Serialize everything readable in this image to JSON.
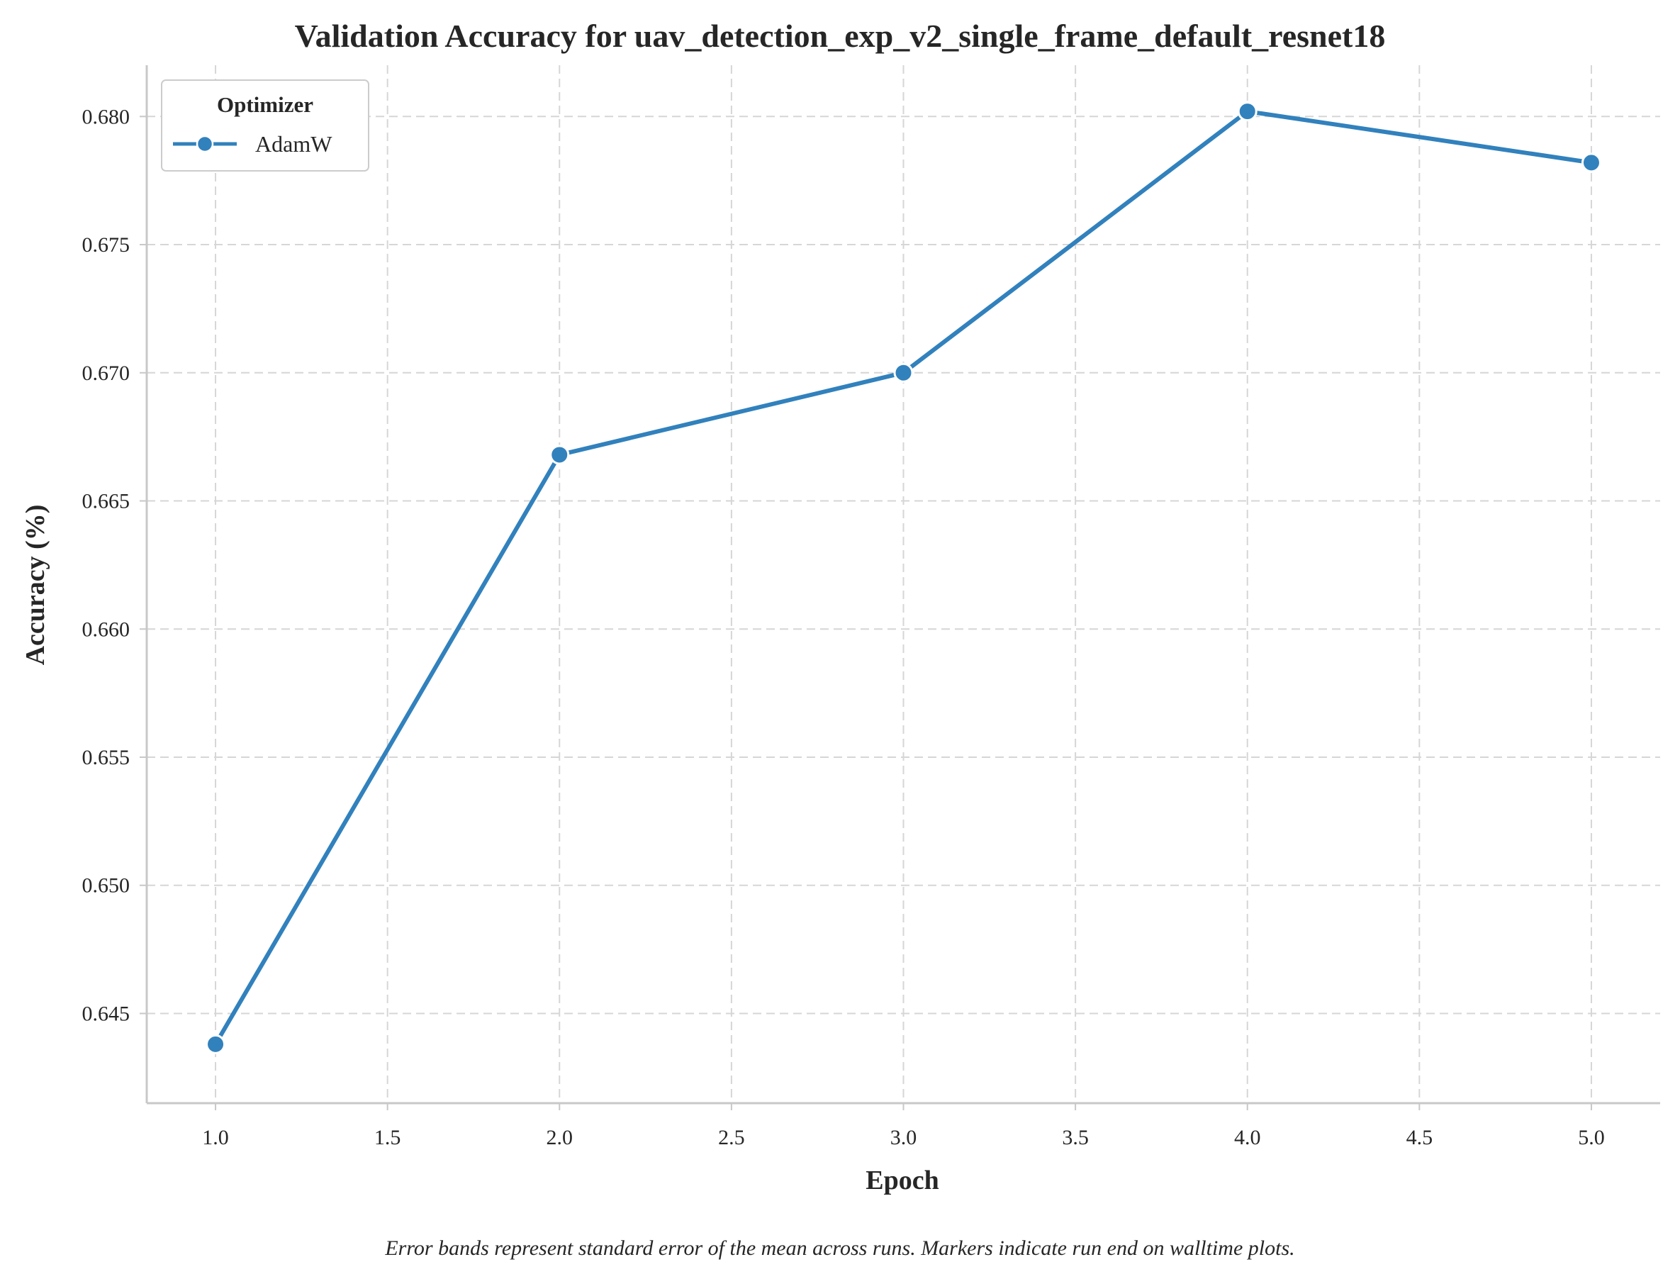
{
  "chart_data": {
    "type": "line",
    "title": "Validation Accuracy for uav_detection_exp_v2_single_frame_default_resnet18",
    "xlabel": "Epoch",
    "ylabel": "Accuracy (%)",
    "caption": "Error bands represent standard error of the mean across runs. Markers indicate run end on walltime plots.",
    "xlim": [
      0.8,
      5.2
    ],
    "ylim": [
      0.6415,
      0.682
    ],
    "xticks": [
      1.0,
      1.5,
      2.0,
      2.5,
      3.0,
      3.5,
      4.0,
      4.5,
      5.0
    ],
    "xtick_labels": [
      "1.0",
      "1.5",
      "2.0",
      "2.5",
      "3.0",
      "3.5",
      "4.0",
      "4.5",
      "5.0"
    ],
    "yticks": [
      0.645,
      0.65,
      0.655,
      0.66,
      0.665,
      0.67,
      0.675,
      0.68
    ],
    "ytick_labels": [
      "0.645",
      "0.650",
      "0.655",
      "0.660",
      "0.665",
      "0.670",
      "0.675",
      "0.680"
    ],
    "grid": true,
    "legend": {
      "title": "Optimizer",
      "placement": "top-left"
    },
    "series": [
      {
        "name": "AdamW",
        "color": "#3181bd",
        "x": [
          1.0,
          2.0,
          3.0,
          4.0,
          5.0
        ],
        "y": [
          0.6438,
          0.6668,
          0.67,
          0.6802,
          0.6782
        ]
      }
    ]
  }
}
